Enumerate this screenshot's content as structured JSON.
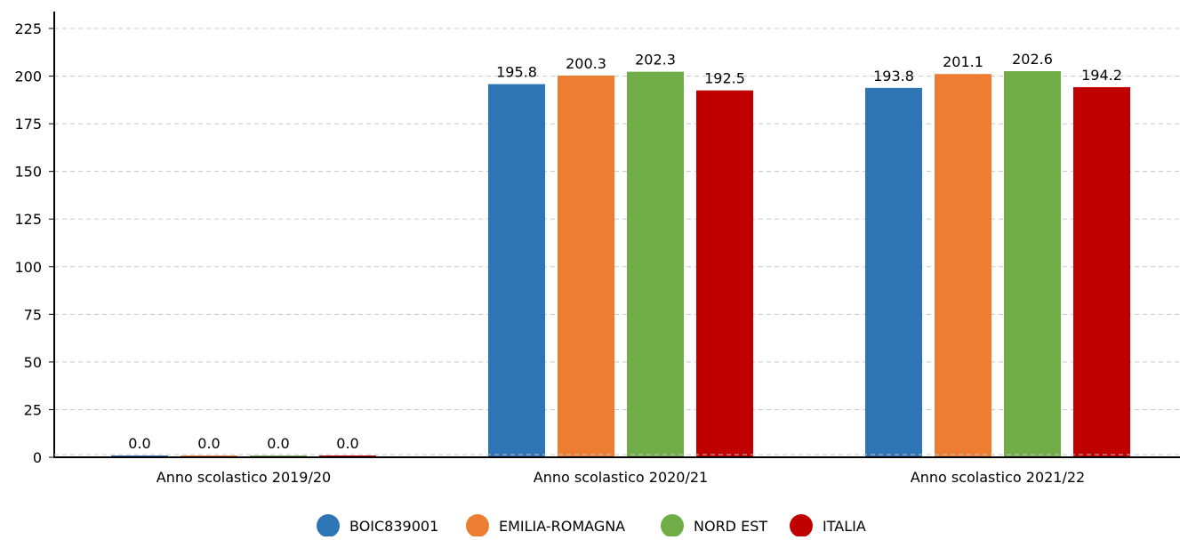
{
  "chart_data": {
    "type": "bar",
    "categories": [
      "Anno scolastico 2019/20",
      "Anno scolastico 2020/21",
      "Anno scolastico 2021/22"
    ],
    "series": [
      {
        "name": "BOIC839001",
        "color": "#2e75b6",
        "values": [
          0.0,
          195.8,
          193.8
        ],
        "labels": [
          "0.0",
          "195.8",
          "193.8"
        ]
      },
      {
        "name": "EMILIA-ROMAGNA",
        "color": "#ed7d31",
        "values": [
          0.0,
          200.3,
          201.1
        ],
        "labels": [
          "0.0",
          "200.3",
          "201.1"
        ]
      },
      {
        "name": "NORD EST",
        "color": "#70ad47",
        "values": [
          0.0,
          202.3,
          202.6
        ],
        "labels": [
          "0.0",
          "202.3",
          "202.6"
        ]
      },
      {
        "name": "ITALIA",
        "color": "#c00000",
        "values": [
          0.0,
          192.5,
          194.2
        ],
        "labels": [
          "0.0",
          "192.5",
          "194.2"
        ]
      }
    ],
    "yticks": [
      "0",
      "25",
      "50",
      "75",
      "100",
      "125",
      "150",
      "175",
      "200",
      "225"
    ],
    "ylim": [
      0,
      225
    ],
    "grid": true,
    "legend_position": "bottom-center",
    "title": "",
    "xlabel": "",
    "ylabel": ""
  }
}
